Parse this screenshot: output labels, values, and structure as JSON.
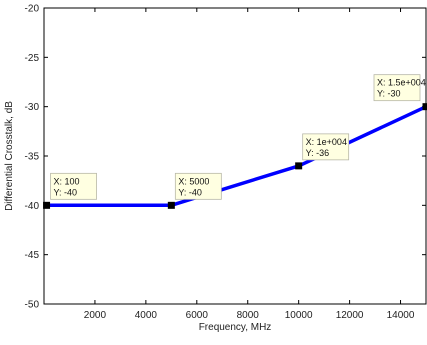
{
  "chart_data": {
    "type": "line",
    "xlabel": "Frequency, MHz",
    "ylabel": "Differential Crosstalk, dB",
    "xlim": [
      0,
      15000
    ],
    "ylim": [
      -50,
      -20
    ],
    "xticks": [
      2000,
      4000,
      6000,
      8000,
      10000,
      12000,
      14000
    ],
    "xtick_labels": [
      "2000",
      "4000",
      "6000",
      "8000",
      "10000",
      "12000",
      "14000"
    ],
    "yticks": [
      -20,
      -25,
      -30,
      -35,
      -40,
      -45,
      -50
    ],
    "ytick_labels": [
      "-20",
      "-25",
      "-30",
      "-35",
      "-40",
      "-45",
      "-50"
    ],
    "grid": false,
    "line_color": "#0000ff",
    "series": [
      {
        "x": [
          100,
          5000,
          10000,
          15000
        ],
        "y": [
          -40,
          -40,
          -36,
          -30
        ]
      }
    ],
    "datatips": [
      {
        "x": 100,
        "y": -40,
        "x_text": "X: 100",
        "y_text": "Y: -40"
      },
      {
        "x": 5000,
        "y": -40,
        "x_text": "X: 5000",
        "y_text": "Y: -40"
      },
      {
        "x": 10000,
        "y": -36,
        "x_text": "X: 1e+004",
        "y_text": "Y: -36"
      },
      {
        "x": 15000,
        "y": -30,
        "x_text": "X: 1.5e+004",
        "y_text": "Y: -30"
      }
    ]
  }
}
